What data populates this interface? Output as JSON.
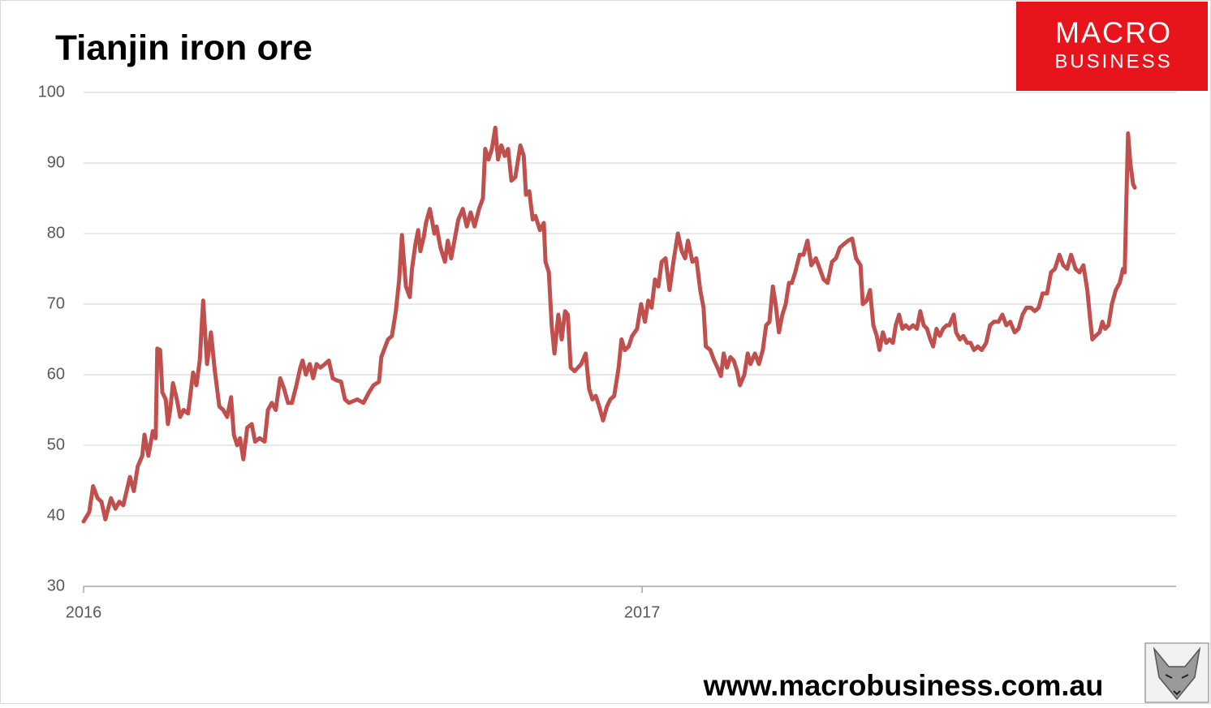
{
  "logo": {
    "line1": "MACRO",
    "line2": "BUSINESS"
  },
  "footer": "www.macrobusiness.com.au",
  "chart_data": {
    "type": "line",
    "title": "Tianjin iron ore",
    "color": "#c0504d",
    "grid": true,
    "xlim": [
      2016,
      2017.956
    ],
    "xticks": [
      2016,
      2017
    ],
    "ylim": [
      30,
      100
    ],
    "yticks": [
      30,
      40,
      50,
      60,
      70,
      80,
      90,
      100
    ],
    "x": [
      2016.0,
      2016.01,
      2016.017,
      2016.025,
      2016.032,
      2016.039,
      2016.049,
      2016.057,
      2016.064,
      2016.071,
      2016.083,
      2016.09,
      2016.097,
      2016.105,
      2016.109,
      2016.116,
      2016.124,
      2016.129,
      2016.132,
      2016.137,
      2016.141,
      2016.147,
      2016.151,
      2016.155,
      2016.16,
      2016.167,
      2016.173,
      2016.179,
      2016.187,
      2016.196,
      2016.202,
      2016.208,
      2016.214,
      2016.221,
      2016.228,
      2016.235,
      2016.243,
      2016.25,
      2016.257,
      2016.264,
      2016.269,
      2016.275,
      2016.28,
      2016.286,
      2016.293,
      2016.301,
      2016.307,
      2016.315,
      2016.324,
      2016.33,
      2016.337,
      2016.344,
      2016.352,
      2016.359,
      2016.366,
      2016.373,
      2016.381,
      2016.388,
      2016.392,
      2016.398,
      2016.405,
      2016.411,
      2016.417,
      2016.424,
      2016.432,
      2016.439,
      2016.446,
      2016.453,
      2016.461,
      2016.468,
      2016.475,
      2016.49,
      2016.501,
      2016.511,
      2016.519,
      2016.529,
      2016.533,
      2016.545,
      2016.552,
      2016.559,
      2016.565,
      2016.57,
      2016.577,
      2016.584,
      2016.588,
      2016.594,
      2016.599,
      2016.603,
      2016.609,
      2016.613,
      2016.62,
      2016.628,
      2016.632,
      2016.639,
      2016.647,
      2016.652,
      2016.658,
      2016.664,
      2016.671,
      2016.679,
      2016.686,
      2016.693,
      2016.7,
      2016.708,
      2016.715,
      2016.719,
      2016.725,
      2016.731,
      2016.737,
      2016.742,
      2016.748,
      2016.754,
      2016.76,
      2016.766,
      2016.773,
      2016.782,
      2016.788,
      2016.792,
      2016.798,
      2016.804,
      2016.809,
      2016.817,
      2016.824,
      2016.827,
      2016.833,
      2016.838,
      2016.843,
      2016.85,
      2016.856,
      2016.862,
      2016.867,
      2016.872,
      2016.879,
      2016.885,
      2016.891,
      2016.899,
      2016.905,
      2016.911,
      2016.917,
      2016.923,
      2016.93,
      2016.937,
      2016.943,
      2016.95,
      2016.958,
      2016.963,
      2016.969,
      2016.976,
      2016.982,
      2016.991,
      2016.998,
      2017.005,
      2017.011,
      2017.017,
      2017.023,
      2017.029,
      2017.035,
      2017.042,
      2017.049,
      2017.056,
      2017.064,
      2017.071,
      2017.077,
      2017.082,
      2017.09,
      2017.097,
      2017.104,
      2017.11,
      2017.114,
      2017.122,
      2017.129,
      2017.135,
      2017.141,
      2017.146,
      2017.152,
      2017.158,
      2017.164,
      2017.17,
      2017.175,
      2017.183,
      2017.189,
      2017.194,
      2017.202,
      2017.209,
      2017.216,
      2017.222,
      2017.228,
      2017.234,
      2017.239,
      2017.245,
      2017.251,
      2017.257,
      2017.263,
      2017.268,
      2017.274,
      2017.282,
      2017.289,
      2017.296,
      2017.303,
      2017.311,
      2017.318,
      2017.325,
      2017.332,
      2017.34,
      2017.347,
      2017.354,
      2017.361,
      2017.369,
      2017.376,
      2017.383,
      2017.391,
      2017.395,
      2017.402,
      2017.408,
      2017.414,
      2017.42,
      2017.425,
      2017.431,
      2017.437,
      2017.443,
      2017.449,
      2017.454,
      2017.46,
      2017.466,
      2017.472,
      2017.478,
      2017.485,
      2017.492,
      2017.498,
      2017.504,
      2017.51,
      2017.516,
      2017.521,
      2017.527,
      2017.533,
      2017.539,
      2017.545,
      2017.55,
      2017.558,
      2017.562,
      2017.569,
      2017.575,
      2017.582,
      2017.588,
      2017.594,
      2017.601,
      2017.608,
      2017.616,
      2017.623,
      2017.63,
      2017.638,
      2017.645,
      2017.652,
      2017.659,
      2017.667,
      2017.674,
      2017.681,
      2017.688,
      2017.696,
      2017.703,
      2017.71,
      2017.717,
      2017.725,
      2017.732,
      2017.739,
      2017.747,
      2017.754,
      2017.761,
      2017.768,
      2017.776,
      2017.783,
      2017.79,
      2017.797,
      2017.802,
      2017.806,
      2017.812,
      2017.819,
      2017.824,
      2017.829,
      2017.835,
      2017.841,
      2017.848,
      2017.855,
      2017.861,
      2017.864,
      2017.867,
      2017.87,
      2017.874,
      2017.879,
      2017.882
    ],
    "values": [
      39.2,
      40.5,
      44.2,
      42.5,
      42,
      39.5,
      42.5,
      41,
      42,
      41.5,
      45.5,
      43.5,
      47,
      48.5,
      51.5,
      48.5,
      52,
      51,
      63.7,
      63.5,
      57.5,
      56.5,
      53,
      55,
      58.8,
      56.5,
      54,
      55,
      54.5,
      60.3,
      58.5,
      62,
      70.5,
      61.5,
      66,
      60.5,
      55.5,
      55,
      54,
      56.8,
      51.5,
      50,
      51,
      48,
      52.5,
      53,
      50.5,
      51,
      50.5,
      55,
      56,
      55,
      59.5,
      58,
      56,
      56,
      58.5,
      61,
      62,
      60,
      61.5,
      59.5,
      61.5,
      61,
      61.5,
      62,
      59.5,
      59.2,
      59,
      56.5,
      56,
      56.5,
      56,
      57.5,
      58.5,
      59,
      62.5,
      65,
      65.5,
      69,
      73.5,
      79.8,
      72.5,
      71,
      75,
      78.5,
      80.5,
      77.5,
      79.5,
      81.5,
      83.5,
      80,
      81,
      78,
      76,
      79,
      76.5,
      79,
      82,
      83.5,
      81,
      83,
      81,
      83.5,
      85,
      92,
      90.5,
      92,
      95,
      90.5,
      92.5,
      91,
      92,
      87.5,
      88,
      92.5,
      91,
      85.5,
      86,
      82,
      82.5,
      80.5,
      81.5,
      76,
      74.5,
      67,
      63,
      68.5,
      65,
      69,
      68.5,
      61,
      60.5,
      61,
      61.5,
      63,
      58,
      56.5,
      57,
      55.5,
      53.5,
      55.5,
      56.5,
      57,
      61,
      65,
      63.5,
      64,
      65.5,
      66.5,
      70,
      67.5,
      70.5,
      69.5,
      73.5,
      72.5,
      76,
      76.5,
      72,
      76,
      80,
      77.5,
      76.5,
      79,
      76,
      76.5,
      72,
      69.5,
      64,
      63.5,
      62,
      61,
      59.8,
      63,
      61,
      62.5,
      62,
      60.5,
      58.5,
      60,
      63,
      61.5,
      63,
      61.5,
      63.5,
      67,
      67.5,
      72.5,
      70,
      66,
      68.5,
      70,
      73,
      73,
      74.5,
      77,
      77,
      79,
      75.5,
      76.5,
      75,
      73.5,
      73,
      76,
      76.5,
      78,
      78.5,
      79,
      79.3,
      76.5,
      75.5,
      70,
      70.5,
      72,
      67,
      65.5,
      63.5,
      66,
      64.5,
      65,
      64.5,
      67,
      68.5,
      66.5,
      67,
      66.5,
      67,
      66.5,
      69,
      67,
      66.5,
      65,
      64,
      66.5,
      65.5,
      66.5,
      67,
      67,
      68.5,
      66,
      65,
      65.5,
      64.5,
      64.5,
      63.5,
      64,
      63.5,
      64.5,
      67,
      67.5,
      67.5,
      68.5,
      67,
      67.5,
      66,
      66.5,
      68.5,
      69.5,
      69.5,
      69,
      69.5,
      71.5,
      71.5,
      74.5,
      75,
      77,
      75.5,
      75,
      77,
      75,
      74.5,
      75.5,
      72,
      68,
      65,
      65.5,
      66,
      67.5,
      66.5,
      67,
      70,
      72,
      73,
      75,
      74.5,
      85,
      94.2,
      90,
      87,
      86.5
    ]
  }
}
